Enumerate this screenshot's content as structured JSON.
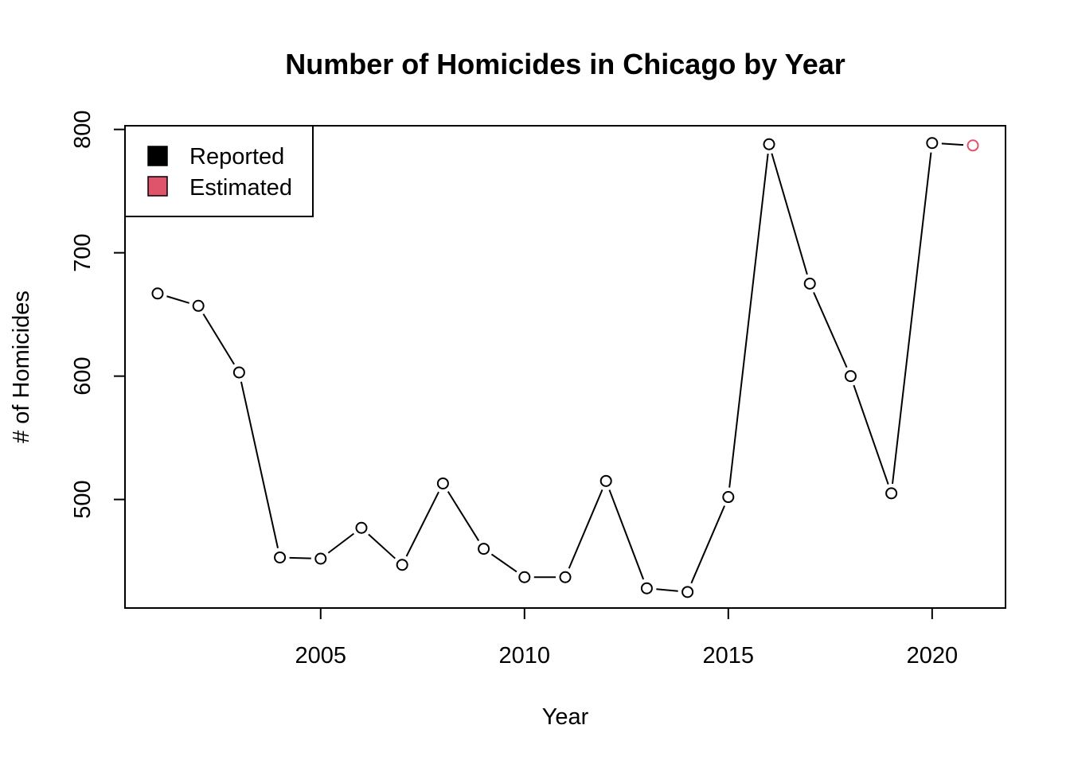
{
  "chart_data": {
    "type": "line",
    "title": "Number of Homicides in Chicago by Year",
    "xlabel": "Year",
    "ylabel": "# of Homicides",
    "xlim": [
      2000.2,
      2021.8
    ],
    "ylim": [
      412,
      803
    ],
    "x_ticks": [
      2005,
      2010,
      2015,
      2020
    ],
    "y_ticks": [
      500,
      600,
      700,
      800
    ],
    "grid": false,
    "legend": {
      "placement": "top-left",
      "entries": [
        {
          "label": "Reported",
          "color": "#000000"
        },
        {
          "label": "Estimated",
          "color": "#DF536B"
        }
      ]
    },
    "series": [
      {
        "name": "Reported",
        "color": "#000000",
        "x": [
          2001,
          2002,
          2003,
          2004,
          2005,
          2006,
          2007,
          2008,
          2009,
          2010,
          2011,
          2012,
          2013,
          2014,
          2015,
          2016,
          2017,
          2018,
          2019,
          2020
        ],
        "values": [
          667,
          657,
          603,
          453,
          452,
          477,
          447,
          513,
          460,
          437,
          437,
          515,
          428,
          425,
          502,
          788,
          675,
          600,
          505,
          789
        ]
      },
      {
        "name": "Estimated",
        "color": "#DF536B",
        "x": [
          2021
        ],
        "values": [
          787
        ]
      }
    ]
  }
}
